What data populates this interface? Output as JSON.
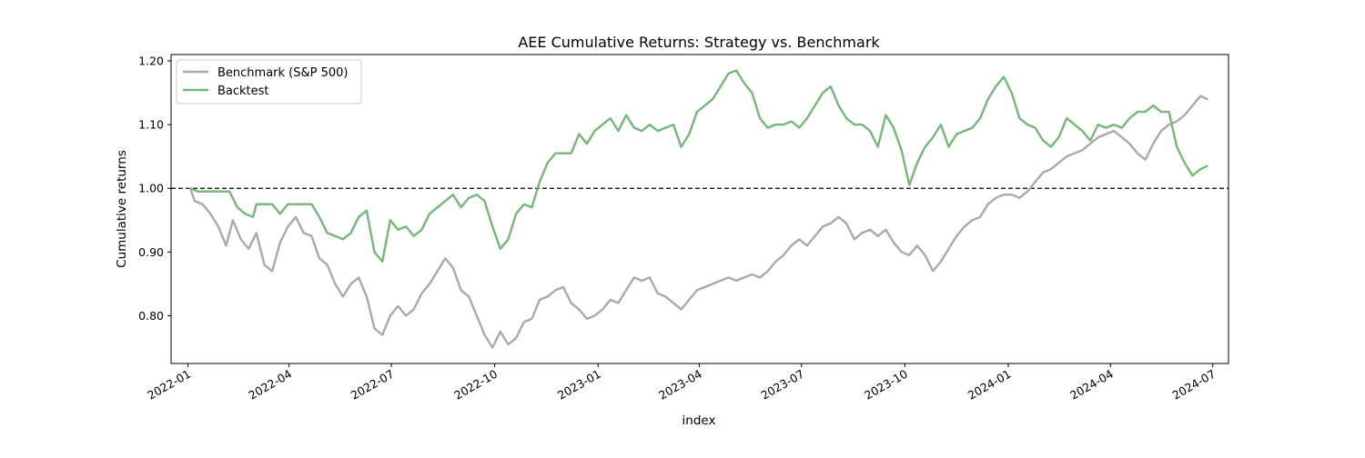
{
  "chart_data": {
    "type": "line",
    "title": "AEE Cumulative Returns: Strategy vs. Benchmark",
    "xlabel": "index",
    "ylabel": "Cumulative returns",
    "x_range": [
      "2021-12-17",
      "2024-07-15"
    ],
    "ylim": [
      0.725,
      1.21
    ],
    "x_ticks": [
      "2022-01",
      "2022-04",
      "2022-07",
      "2022-10",
      "2023-01",
      "2023-04",
      "2023-07",
      "2023-10",
      "2024-01",
      "2024-04",
      "2024-07"
    ],
    "y_ticks": [
      "0.80",
      "0.90",
      "1.00",
      "1.10",
      "1.20"
    ],
    "reference_line": {
      "y": 1.0,
      "style": "dashed",
      "color": "#000000"
    },
    "grid": false,
    "legend_position": "top-left",
    "series": [
      {
        "name": "Benchmark (S&P 500)",
        "color": "#aaaaaa",
        "points": [
          [
            "2022-01-03",
            1.0
          ],
          [
            "2022-01-07",
            0.98
          ],
          [
            "2022-01-14",
            0.975
          ],
          [
            "2022-01-21",
            0.96
          ],
          [
            "2022-01-28",
            0.94
          ],
          [
            "2022-02-04",
            0.91
          ],
          [
            "2022-02-10",
            0.95
          ],
          [
            "2022-02-17",
            0.92
          ],
          [
            "2022-02-24",
            0.905
          ],
          [
            "2022-03-03",
            0.93
          ],
          [
            "2022-03-10",
            0.88
          ],
          [
            "2022-03-17",
            0.87
          ],
          [
            "2022-03-24",
            0.915
          ],
          [
            "2022-03-31",
            0.94
          ],
          [
            "2022-04-07",
            0.955
          ],
          [
            "2022-04-14",
            0.93
          ],
          [
            "2022-04-21",
            0.925
          ],
          [
            "2022-04-28",
            0.89
          ],
          [
            "2022-05-05",
            0.88
          ],
          [
            "2022-05-12",
            0.85
          ],
          [
            "2022-05-19",
            0.83
          ],
          [
            "2022-05-26",
            0.85
          ],
          [
            "2022-06-02",
            0.86
          ],
          [
            "2022-06-09",
            0.83
          ],
          [
            "2022-06-16",
            0.78
          ],
          [
            "2022-06-23",
            0.77
          ],
          [
            "2022-06-30",
            0.8
          ],
          [
            "2022-07-07",
            0.815
          ],
          [
            "2022-07-14",
            0.8
          ],
          [
            "2022-07-21",
            0.81
          ],
          [
            "2022-07-28",
            0.835
          ],
          [
            "2022-08-04",
            0.85
          ],
          [
            "2022-08-11",
            0.87
          ],
          [
            "2022-08-18",
            0.89
          ],
          [
            "2022-08-25",
            0.875
          ],
          [
            "2022-09-01",
            0.84
          ],
          [
            "2022-09-08",
            0.83
          ],
          [
            "2022-09-15",
            0.8
          ],
          [
            "2022-09-22",
            0.77
          ],
          [
            "2022-09-29",
            0.75
          ],
          [
            "2022-10-06",
            0.775
          ],
          [
            "2022-10-13",
            0.755
          ],
          [
            "2022-10-20",
            0.765
          ],
          [
            "2022-10-27",
            0.79
          ],
          [
            "2022-11-03",
            0.795
          ],
          [
            "2022-11-10",
            0.825
          ],
          [
            "2022-11-17",
            0.83
          ],
          [
            "2022-11-24",
            0.84
          ],
          [
            "2022-12-01",
            0.845
          ],
          [
            "2022-12-08",
            0.82
          ],
          [
            "2022-12-15",
            0.81
          ],
          [
            "2022-12-22",
            0.795
          ],
          [
            "2022-12-29",
            0.8
          ],
          [
            "2023-01-05",
            0.81
          ],
          [
            "2023-01-12",
            0.825
          ],
          [
            "2023-01-19",
            0.82
          ],
          [
            "2023-01-26",
            0.84
          ],
          [
            "2023-02-02",
            0.86
          ],
          [
            "2023-02-09",
            0.855
          ],
          [
            "2023-02-16",
            0.86
          ],
          [
            "2023-02-23",
            0.835
          ],
          [
            "2023-03-02",
            0.83
          ],
          [
            "2023-03-09",
            0.82
          ],
          [
            "2023-03-16",
            0.81
          ],
          [
            "2023-03-23",
            0.825
          ],
          [
            "2023-03-30",
            0.84
          ],
          [
            "2023-04-06",
            0.845
          ],
          [
            "2023-04-13",
            0.85
          ],
          [
            "2023-04-20",
            0.855
          ],
          [
            "2023-04-27",
            0.86
          ],
          [
            "2023-05-04",
            0.855
          ],
          [
            "2023-05-11",
            0.86
          ],
          [
            "2023-05-18",
            0.865
          ],
          [
            "2023-05-25",
            0.86
          ],
          [
            "2023-06-01",
            0.87
          ],
          [
            "2023-06-08",
            0.885
          ],
          [
            "2023-06-15",
            0.895
          ],
          [
            "2023-06-22",
            0.91
          ],
          [
            "2023-06-29",
            0.92
          ],
          [
            "2023-07-06",
            0.91
          ],
          [
            "2023-07-13",
            0.925
          ],
          [
            "2023-07-20",
            0.94
          ],
          [
            "2023-07-27",
            0.945
          ],
          [
            "2023-08-03",
            0.955
          ],
          [
            "2023-08-10",
            0.945
          ],
          [
            "2023-08-17",
            0.92
          ],
          [
            "2023-08-24",
            0.93
          ],
          [
            "2023-08-31",
            0.935
          ],
          [
            "2023-09-07",
            0.925
          ],
          [
            "2023-09-14",
            0.935
          ],
          [
            "2023-09-21",
            0.915
          ],
          [
            "2023-09-28",
            0.9
          ],
          [
            "2023-10-05",
            0.895
          ],
          [
            "2023-10-12",
            0.91
          ],
          [
            "2023-10-19",
            0.895
          ],
          [
            "2023-10-26",
            0.87
          ],
          [
            "2023-11-02",
            0.885
          ],
          [
            "2023-11-09",
            0.905
          ],
          [
            "2023-11-16",
            0.925
          ],
          [
            "2023-11-23",
            0.94
          ],
          [
            "2023-11-30",
            0.95
          ],
          [
            "2023-12-07",
            0.955
          ],
          [
            "2023-12-14",
            0.975
          ],
          [
            "2023-12-21",
            0.985
          ],
          [
            "2023-12-28",
            0.99
          ],
          [
            "2024-01-04",
            0.99
          ],
          [
            "2024-01-11",
            0.985
          ],
          [
            "2024-01-18",
            0.995
          ],
          [
            "2024-01-25",
            1.01
          ],
          [
            "2024-02-01",
            1.025
          ],
          [
            "2024-02-08",
            1.03
          ],
          [
            "2024-02-15",
            1.04
          ],
          [
            "2024-02-22",
            1.05
          ],
          [
            "2024-02-29",
            1.055
          ],
          [
            "2024-03-07",
            1.06
          ],
          [
            "2024-03-14",
            1.07
          ],
          [
            "2024-03-21",
            1.08
          ],
          [
            "2024-03-28",
            1.085
          ],
          [
            "2024-04-04",
            1.09
          ],
          [
            "2024-04-11",
            1.08
          ],
          [
            "2024-04-18",
            1.07
          ],
          [
            "2024-04-25",
            1.055
          ],
          [
            "2024-05-02",
            1.045
          ],
          [
            "2024-05-09",
            1.07
          ],
          [
            "2024-05-16",
            1.09
          ],
          [
            "2024-05-23",
            1.1
          ],
          [
            "2024-05-30",
            1.105
          ],
          [
            "2024-06-06",
            1.115
          ],
          [
            "2024-06-13",
            1.13
          ],
          [
            "2024-06-20",
            1.145
          ],
          [
            "2024-06-26",
            1.14
          ]
        ]
      },
      {
        "name": "Backtest",
        "color": "#75b878",
        "points": [
          [
            "2022-01-03",
            1.0
          ],
          [
            "2022-01-10",
            0.995
          ],
          [
            "2022-01-24",
            0.995
          ],
          [
            "2022-02-07",
            0.995
          ],
          [
            "2022-02-14",
            0.97
          ],
          [
            "2022-02-21",
            0.96
          ],
          [
            "2022-02-28",
            0.955
          ],
          [
            "2022-03-03",
            0.975
          ],
          [
            "2022-03-10",
            0.975
          ],
          [
            "2022-03-17",
            0.975
          ],
          [
            "2022-03-24",
            0.96
          ],
          [
            "2022-03-31",
            0.975
          ],
          [
            "2022-04-07",
            0.975
          ],
          [
            "2022-04-14",
            0.975
          ],
          [
            "2022-04-21",
            0.975
          ],
          [
            "2022-04-28",
            0.955
          ],
          [
            "2022-05-05",
            0.93
          ],
          [
            "2022-05-12",
            0.925
          ],
          [
            "2022-05-19",
            0.92
          ],
          [
            "2022-05-26",
            0.93
          ],
          [
            "2022-06-02",
            0.955
          ],
          [
            "2022-06-09",
            0.965
          ],
          [
            "2022-06-16",
            0.9
          ],
          [
            "2022-06-23",
            0.885
          ],
          [
            "2022-06-30",
            0.95
          ],
          [
            "2022-07-07",
            0.935
          ],
          [
            "2022-07-14",
            0.94
          ],
          [
            "2022-07-21",
            0.925
          ],
          [
            "2022-07-28",
            0.935
          ],
          [
            "2022-08-04",
            0.96
          ],
          [
            "2022-08-11",
            0.97
          ],
          [
            "2022-08-18",
            0.98
          ],
          [
            "2022-08-25",
            0.99
          ],
          [
            "2022-09-01",
            0.97
          ],
          [
            "2022-09-08",
            0.985
          ],
          [
            "2022-09-15",
            0.99
          ],
          [
            "2022-09-22",
            0.98
          ],
          [
            "2022-09-29",
            0.94
          ],
          [
            "2022-10-06",
            0.905
          ],
          [
            "2022-10-13",
            0.92
          ],
          [
            "2022-10-20",
            0.96
          ],
          [
            "2022-10-27",
            0.975
          ],
          [
            "2022-11-03",
            0.97
          ],
          [
            "2022-11-10",
            1.01
          ],
          [
            "2022-11-17",
            1.04
          ],
          [
            "2022-11-24",
            1.055
          ],
          [
            "2022-12-01",
            1.055
          ],
          [
            "2022-12-08",
            1.055
          ],
          [
            "2022-12-15",
            1.085
          ],
          [
            "2022-12-22",
            1.07
          ],
          [
            "2022-12-29",
            1.09
          ],
          [
            "2023-01-05",
            1.1
          ],
          [
            "2023-01-12",
            1.11
          ],
          [
            "2023-01-19",
            1.09
          ],
          [
            "2023-01-26",
            1.115
          ],
          [
            "2023-02-02",
            1.095
          ],
          [
            "2023-02-09",
            1.09
          ],
          [
            "2023-02-16",
            1.1
          ],
          [
            "2023-02-23",
            1.09
          ],
          [
            "2023-03-02",
            1.095
          ],
          [
            "2023-03-09",
            1.1
          ],
          [
            "2023-03-16",
            1.065
          ],
          [
            "2023-03-23",
            1.085
          ],
          [
            "2023-03-30",
            1.12
          ],
          [
            "2023-04-06",
            1.13
          ],
          [
            "2023-04-13",
            1.14
          ],
          [
            "2023-04-20",
            1.16
          ],
          [
            "2023-04-27",
            1.18
          ],
          [
            "2023-05-04",
            1.185
          ],
          [
            "2023-05-11",
            1.165
          ],
          [
            "2023-05-18",
            1.15
          ],
          [
            "2023-05-25",
            1.11
          ],
          [
            "2023-06-01",
            1.095
          ],
          [
            "2023-06-08",
            1.1
          ],
          [
            "2023-06-15",
            1.1
          ],
          [
            "2023-06-22",
            1.105
          ],
          [
            "2023-06-29",
            1.095
          ],
          [
            "2023-07-06",
            1.11
          ],
          [
            "2023-07-13",
            1.13
          ],
          [
            "2023-07-20",
            1.15
          ],
          [
            "2023-07-27",
            1.16
          ],
          [
            "2023-08-03",
            1.13
          ],
          [
            "2023-08-10",
            1.11
          ],
          [
            "2023-08-17",
            1.1
          ],
          [
            "2023-08-24",
            1.1
          ],
          [
            "2023-08-31",
            1.09
          ],
          [
            "2023-09-07",
            1.065
          ],
          [
            "2023-09-14",
            1.115
          ],
          [
            "2023-09-21",
            1.095
          ],
          [
            "2023-09-28",
            1.06
          ],
          [
            "2023-10-05",
            1.005
          ],
          [
            "2023-10-12",
            1.04
          ],
          [
            "2023-10-19",
            1.065
          ],
          [
            "2023-10-26",
            1.08
          ],
          [
            "2023-11-02",
            1.1
          ],
          [
            "2023-11-09",
            1.065
          ],
          [
            "2023-11-16",
            1.085
          ],
          [
            "2023-11-23",
            1.09
          ],
          [
            "2023-11-30",
            1.095
          ],
          [
            "2023-12-07",
            1.11
          ],
          [
            "2023-12-14",
            1.14
          ],
          [
            "2023-12-21",
            1.16
          ],
          [
            "2023-12-28",
            1.175
          ],
          [
            "2024-01-04",
            1.15
          ],
          [
            "2024-01-11",
            1.11
          ],
          [
            "2024-01-18",
            1.1
          ],
          [
            "2024-01-25",
            1.095
          ],
          [
            "2024-02-01",
            1.075
          ],
          [
            "2024-02-08",
            1.065
          ],
          [
            "2024-02-15",
            1.08
          ],
          [
            "2024-02-22",
            1.11
          ],
          [
            "2024-02-29",
            1.1
          ],
          [
            "2024-03-07",
            1.09
          ],
          [
            "2024-03-14",
            1.075
          ],
          [
            "2024-03-21",
            1.1
          ],
          [
            "2024-03-28",
            1.095
          ],
          [
            "2024-04-04",
            1.1
          ],
          [
            "2024-04-11",
            1.095
          ],
          [
            "2024-04-18",
            1.11
          ],
          [
            "2024-04-25",
            1.12
          ],
          [
            "2024-05-02",
            1.12
          ],
          [
            "2024-05-09",
            1.13
          ],
          [
            "2024-05-16",
            1.12
          ],
          [
            "2024-05-23",
            1.12
          ],
          [
            "2024-05-30",
            1.065
          ],
          [
            "2024-06-06",
            1.04
          ],
          [
            "2024-06-13",
            1.02
          ],
          [
            "2024-06-20",
            1.03
          ],
          [
            "2024-06-26",
            1.035
          ]
        ]
      }
    ]
  }
}
